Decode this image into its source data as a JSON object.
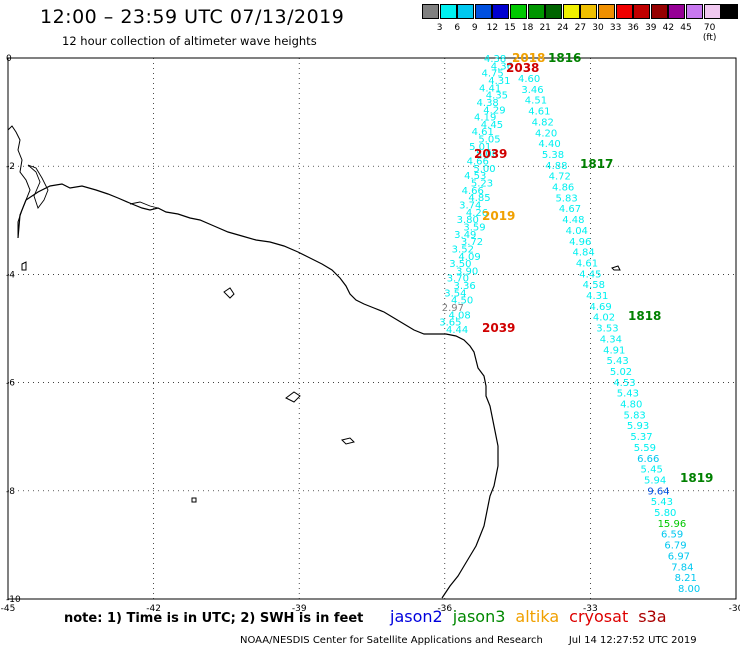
{
  "header": {
    "title": "12:00 – 23:59 UTC 07/13/2019",
    "subtitle": "12 hour collection of altimeter wave heights"
  },
  "colorbar": {
    "colors": [
      "#808080",
      "#00f0f0",
      "#00c8f0",
      "#0050e0",
      "#0000d0",
      "#00c800",
      "#009600",
      "#006400",
      "#f0f000",
      "#f0c000",
      "#f09000",
      "#f00000",
      "#c00000",
      "#960000",
      "#960096",
      "#c878f0",
      "#f0c8f0",
      "#000000"
    ],
    "labels": [
      "3",
      "6",
      "9",
      "12",
      "15",
      "18",
      "21",
      "24",
      "27",
      "30",
      "33",
      "36",
      "39",
      "42",
      "45",
      "70 (ft)"
    ]
  },
  "axes": {
    "x_ticks": [
      -45,
      -42,
      -39,
      -36,
      -33,
      -30
    ],
    "y_ticks": [
      0,
      -2,
      -4,
      -6,
      -8,
      -10
    ]
  },
  "tracks": {
    "left_track_values": [
      "4.38",
      "4.36",
      "4.75",
      "4.31",
      "4.41",
      "4.35",
      "4.38",
      "4.29",
      "4.19",
      "4.45",
      "4.61",
      "5.05",
      "5.01",
      "5.06",
      "4.66",
      "5.00",
      "4.53",
      "5.23",
      "4.66",
      "4.85",
      "3.74",
      "4.26",
      "3.80",
      "3.59",
      "3.49",
      "3.72",
      "3.52",
      "4.09",
      "3.50",
      "3.90",
      "3.70",
      "3.36",
      "3.54",
      "4.50",
      "2.97",
      "4.08",
      "3.65",
      "4.44"
    ],
    "right_track_values": [
      "4.60",
      "3.46",
      "4.51",
      "4.61",
      "4.82",
      "4.20",
      "4.40",
      "5.38",
      "4.88",
      "4.72",
      "4.86",
      "5.83",
      "4.67",
      "4.48",
      "4.04",
      "4.96",
      "4.84",
      "4.61",
      "4.45",
      "4.58",
      "4.31",
      "4.69",
      "4.02",
      "3.53",
      "4.34",
      "4.91",
      "5.43",
      "5.02",
      "4.53",
      "5.43",
      "4.80",
      "5.83",
      "5.93",
      "5.37",
      "5.59",
      "6.66",
      "5.45",
      "5.94",
      "9.64",
      "5.43",
      "5.80",
      "15.96",
      "6.59",
      "6.79",
      "6.97",
      "7.84",
      "8.21",
      "8.00"
    ]
  },
  "time_labels": [
    {
      "text": "2018",
      "color": "#f0a000"
    },
    {
      "text": "1816",
      "color": "#008000"
    },
    {
      "text": "2038",
      "color": "#d00000"
    },
    {
      "text": "2039",
      "color": "#d00000"
    },
    {
      "text": "1817",
      "color": "#008000"
    },
    {
      "text": "2019",
      "color": "#f0a000"
    },
    {
      "text": "1818",
      "color": "#008000"
    },
    {
      "text": "2039",
      "color": "#d00000"
    },
    {
      "text": "1819",
      "color": "#008000"
    }
  ],
  "note": "note:  1) Time is in UTC;  2) SWH is in feet",
  "legend": [
    {
      "label": "jason2",
      "color": "#0000dd"
    },
    {
      "label": "jason3",
      "color": "#008800"
    },
    {
      "label": "altika",
      "color": "#f0a000"
    },
    {
      "label": "cryosat",
      "color": "#dd0000"
    },
    {
      "label": "s3a",
      "color": "#aa0000"
    }
  ],
  "footer": {
    "center": "NOAA/NESDIS Center for Satellite Applications and Research",
    "timestamp": "Jul 14 12:27:52 UTC 2019"
  }
}
